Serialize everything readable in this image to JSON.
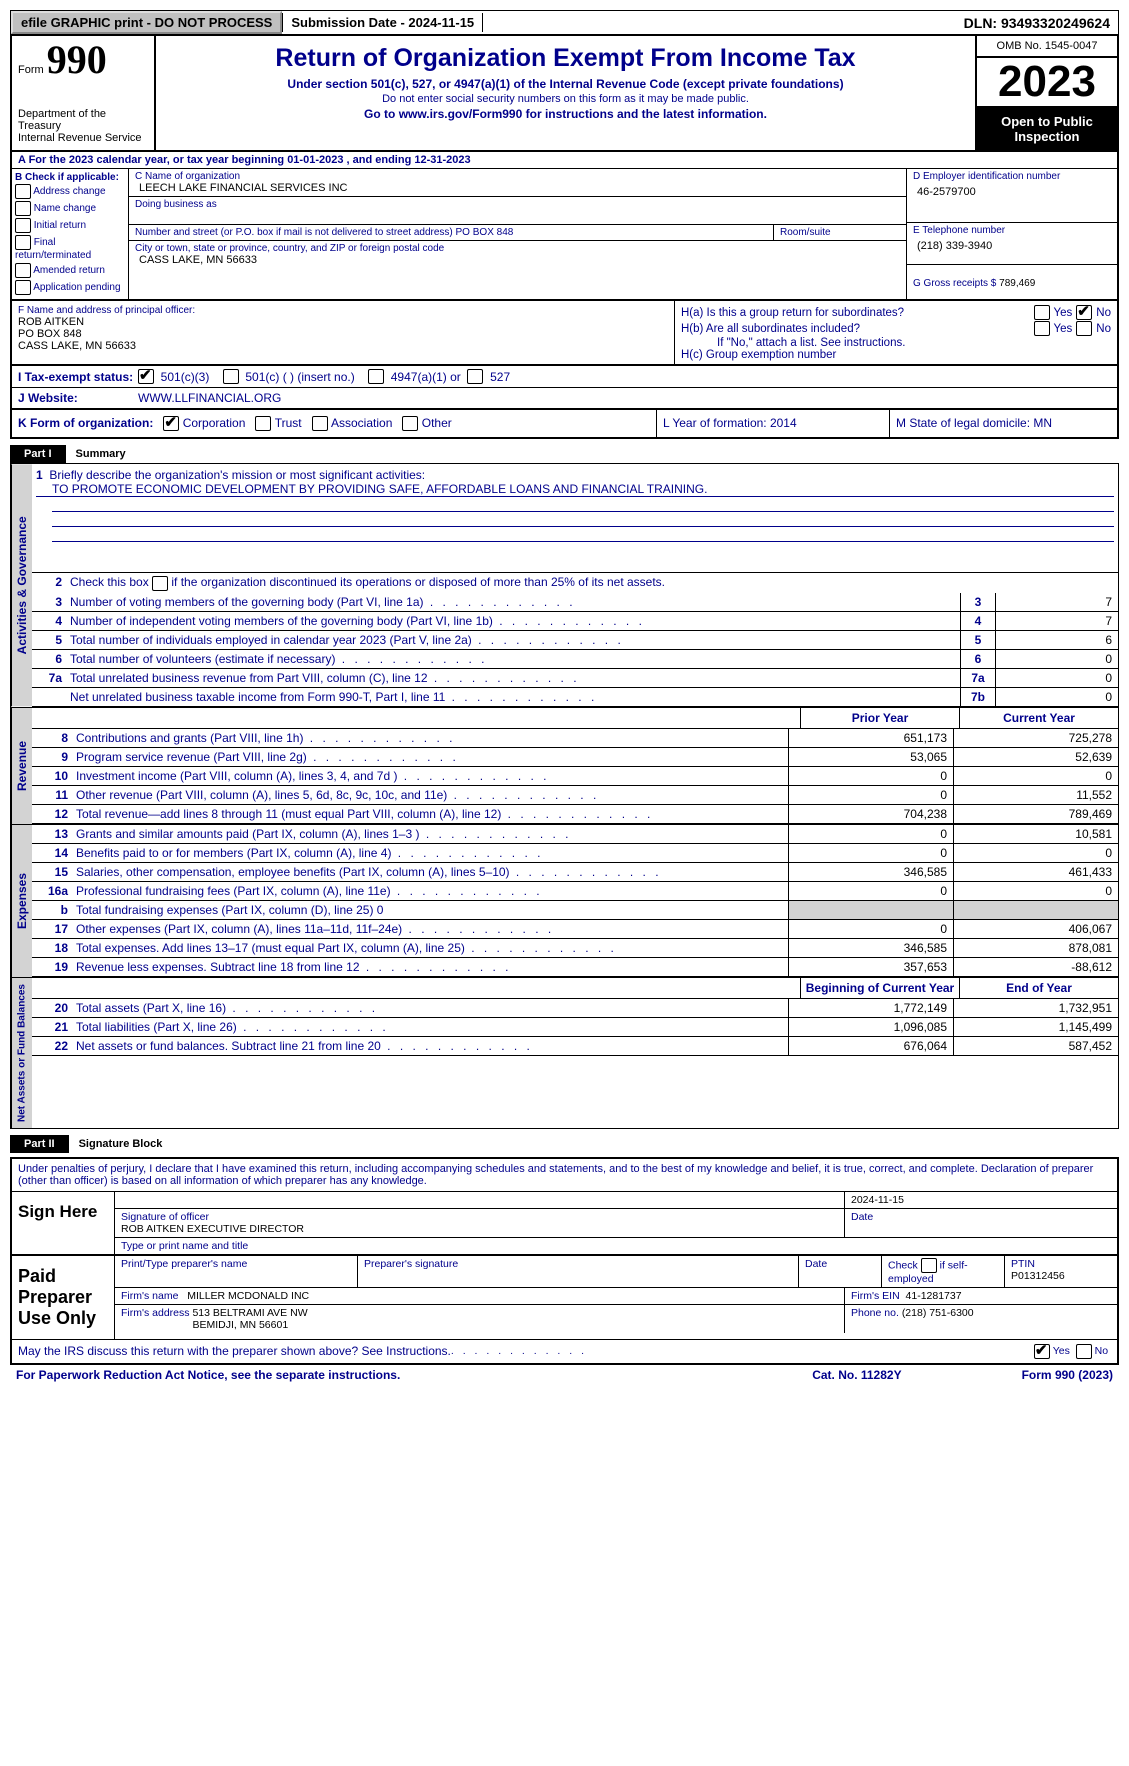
{
  "topbar": {
    "efile": "efile GRAPHIC print - DO NOT PROCESS",
    "submission_label": "Submission Date - 2024-11-15",
    "dln": "DLN: 93493320249624"
  },
  "header": {
    "form_prefix": "Form",
    "form_number": "990",
    "dept": "Department of the Treasury\nInternal Revenue Service",
    "title": "Return of Organization Exempt From Income Tax",
    "subtitle": "Under section 501(c), 527, or 4947(a)(1) of the Internal Revenue Code (except private foundations)",
    "note": "Do not enter social security numbers on this form as it may be made public.",
    "goto": "Go to www.irs.gov/Form990 for instructions and the latest information.",
    "goto_url": "www.irs.gov/Form990",
    "omb": "OMB No. 1545-0047",
    "year": "2023",
    "open_public": "Open to Public Inspection"
  },
  "lineA": "A For the 2023 calendar year, or tax year beginning 01-01-2023   , and ending 12-31-2023",
  "boxB": {
    "label": "B Check if applicable:",
    "opts": [
      "Address change",
      "Name change",
      "Initial return",
      "Final return/terminated",
      "Amended return",
      "Application pending"
    ]
  },
  "boxC": {
    "name_lbl": "C Name of organization",
    "name_val": "LEECH LAKE FINANCIAL SERVICES INC",
    "dba_lbl": "Doing business as",
    "street_lbl": "Number and street (or P.O. box if mail is not delivered to street address)",
    "street_val": "PO BOX 848",
    "room_lbl": "Room/suite",
    "city_lbl": "City or town, state or province, country, and ZIP or foreign postal code",
    "city_val": "CASS LAKE, MN  56633"
  },
  "boxD": {
    "lbl": "D Employer identification number",
    "val": "46-2579700"
  },
  "boxE": {
    "lbl": "E Telephone number",
    "val": "(218) 339-3940"
  },
  "boxG": {
    "lbl": "G Gross receipts $",
    "val": "789,469"
  },
  "boxF": {
    "lbl": "F Name and address of principal officer:",
    "val": "ROB AITKEN\nPO BOX 848\nCASS LAKE, MN  56633"
  },
  "boxH": {
    "a": "H(a) Is this a group return for subordinates?",
    "b": "H(b) Are all subordinates included?",
    "b_note": "If \"No,\" attach a list. See instructions.",
    "c": "H(c) Group exemption number"
  },
  "rowI": {
    "lbl": "I   Tax-exempt status:",
    "opts": [
      "501(c)(3)",
      "501(c) (  ) (insert no.)",
      "4947(a)(1) or",
      "527"
    ]
  },
  "rowJ": {
    "lbl": "J   Website:",
    "val": "WWW.LLFINANCIAL.ORG"
  },
  "rowK": {
    "lbl": "K Form of organization:",
    "opts": [
      "Corporation",
      "Trust",
      "Association",
      "Other"
    ],
    "L": "L Year of formation: 2014",
    "M": "M State of legal domicile: MN"
  },
  "part1": {
    "hdr": "Part I",
    "title": "Summary",
    "tab_ag": "Activities & Governance",
    "tab_rev": "Revenue",
    "tab_exp": "Expenses",
    "tab_na": "Net Assets or Fund Balances",
    "l1": "Briefly describe the organization's mission or most significant activities:",
    "l1_val": "TO PROMOTE ECONOMIC DEVELOPMENT BY PROVIDING SAFE, AFFORDABLE LOANS AND FINANCIAL TRAINING.",
    "l2": "Check this box      if the organization discontinued its operations or disposed of more than 25% of its net assets.",
    "lines_ag": [
      {
        "n": "3",
        "t": "Number of voting members of the governing body (Part VI, line 1a)",
        "box": "3",
        "v": "7"
      },
      {
        "n": "4",
        "t": "Number of independent voting members of the governing body (Part VI, line 1b)",
        "box": "4",
        "v": "7"
      },
      {
        "n": "5",
        "t": "Total number of individuals employed in calendar year 2023 (Part V, line 2a)",
        "box": "5",
        "v": "6"
      },
      {
        "n": "6",
        "t": "Total number of volunteers (estimate if necessary)",
        "box": "6",
        "v": "0"
      },
      {
        "n": "7a",
        "t": "Total unrelated business revenue from Part VIII, column (C), line 12",
        "box": "7a",
        "v": "0"
      },
      {
        "n": "",
        "t": "Net unrelated business taxable income from Form 990-T, Part I, line 11",
        "box": "7b",
        "v": "0"
      }
    ],
    "col_prior": "Prior Year",
    "col_current": "Current Year",
    "lines_rev": [
      {
        "n": "8",
        "t": "Contributions and grants (Part VIII, line 1h)",
        "p": "651,173",
        "c": "725,278"
      },
      {
        "n": "9",
        "t": "Program service revenue (Part VIII, line 2g)",
        "p": "53,065",
        "c": "52,639"
      },
      {
        "n": "10",
        "t": "Investment income (Part VIII, column (A), lines 3, 4, and 7d )",
        "p": "0",
        "c": "0"
      },
      {
        "n": "11",
        "t": "Other revenue (Part VIII, column (A), lines 5, 6d, 8c, 9c, 10c, and 11e)",
        "p": "0",
        "c": "11,552"
      },
      {
        "n": "12",
        "t": "Total revenue—add lines 8 through 11 (must equal Part VIII, column (A), line 12)",
        "p": "704,238",
        "c": "789,469"
      }
    ],
    "lines_exp": [
      {
        "n": "13",
        "t": "Grants and similar amounts paid (Part IX, column (A), lines 1–3 )",
        "p": "0",
        "c": "10,581"
      },
      {
        "n": "14",
        "t": "Benefits paid to or for members (Part IX, column (A), line 4)",
        "p": "0",
        "c": "0"
      },
      {
        "n": "15",
        "t": "Salaries, other compensation, employee benefits (Part IX, column (A), lines 5–10)",
        "p": "346,585",
        "c": "461,433"
      },
      {
        "n": "16a",
        "t": "Professional fundraising fees (Part IX, column (A), line 11e)",
        "p": "0",
        "c": "0"
      },
      {
        "n": "b",
        "t": "Total fundraising expenses (Part IX, column (D), line 25) 0",
        "p": "shade",
        "c": "shade"
      },
      {
        "n": "17",
        "t": "Other expenses (Part IX, column (A), lines 11a–11d, 11f–24e)",
        "p": "0",
        "c": "406,067"
      },
      {
        "n": "18",
        "t": "Total expenses. Add lines 13–17 (must equal Part IX, column (A), line 25)",
        "p": "346,585",
        "c": "878,081"
      },
      {
        "n": "19",
        "t": "Revenue less expenses. Subtract line 18 from line 12",
        "p": "357,653",
        "c": "-88,612"
      }
    ],
    "col_boy": "Beginning of Current Year",
    "col_eoy": "End of Year",
    "lines_na": [
      {
        "n": "20",
        "t": "Total assets (Part X, line 16)",
        "p": "1,772,149",
        "c": "1,732,951"
      },
      {
        "n": "21",
        "t": "Total liabilities (Part X, line 26)",
        "p": "1,096,085",
        "c": "1,145,499"
      },
      {
        "n": "22",
        "t": "Net assets or fund balances. Subtract line 21 from line 20",
        "p": "676,064",
        "c": "587,452"
      }
    ]
  },
  "part2": {
    "hdr": "Part II",
    "title": "Signature Block",
    "penal": "Under penalties of perjury, I declare that I have examined this return, including accompanying schedules and statements, and to the best of my knowledge and belief, it is true, correct, and complete. Declaration of preparer (other than officer) is based on all information of which preparer has any knowledge.",
    "sign_here": "Sign Here",
    "sig_officer_lbl": "Signature of officer",
    "sig_name": "ROB AITKEN  EXECUTIVE DIRECTOR",
    "type_lbl": "Type or print name and title",
    "date_lbl": "Date",
    "date_val": "2024-11-15",
    "paid": "Paid Preparer Use Only",
    "prep_name_lbl": "Print/Type preparer's name",
    "prep_sig_lbl": "Preparer's signature",
    "prep_date_lbl": "Date",
    "prep_self_lbl": "Check      if self-employed",
    "ptin_lbl": "PTIN",
    "ptin_val": "P01312456",
    "firm_name_lbl": "Firm's name",
    "firm_name_val": "MILLER MCDONALD INC",
    "firm_ein_lbl": "Firm's EIN",
    "firm_ein_val": "41-1281737",
    "firm_addr_lbl": "Firm's address",
    "firm_addr_val": "513 BELTRAMI AVE NW\nBEMIDJI, MN  56601",
    "phone_lbl": "Phone no.",
    "phone_val": "(218) 751-6300",
    "discuss": "May the IRS discuss this return with the preparer shown above? See Instructions."
  },
  "footer": {
    "pra": "For Paperwork Reduction Act Notice, see the separate instructions.",
    "cat": "Cat. No. 11282Y",
    "form": "Form 990 (2023)"
  }
}
